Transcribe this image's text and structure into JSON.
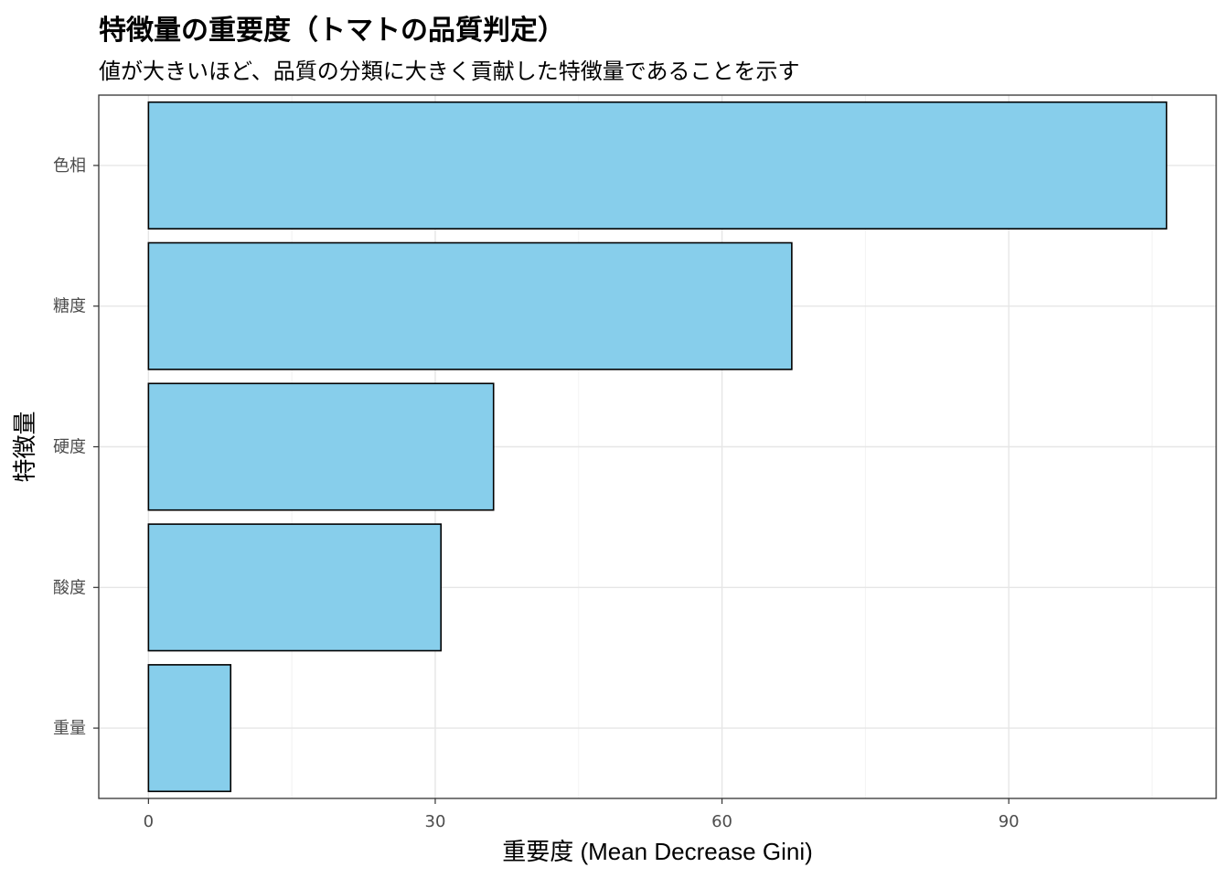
{
  "chart_data": {
    "type": "bar",
    "orientation": "horizontal",
    "title": "特徴量の重要度（トマトの品質判定）",
    "subtitle": "値が大きいほど、品質の分類に大きく貢献した特徴量であることを示す",
    "xlabel": "重要度 (Mean Decrease Gini)",
    "ylabel": "特徴量",
    "categories": [
      "色相",
      "糖度",
      "硬度",
      "酸度",
      "重量"
    ],
    "values": [
      106.5,
      67.3,
      36.1,
      30.6,
      8.6
    ],
    "xlim": [
      -5.2,
      111.7
    ],
    "xticks": [
      0,
      30,
      60,
      90
    ],
    "grid": true,
    "bar_color": "#87CEEB",
    "bar_edge_color": "#000000"
  }
}
